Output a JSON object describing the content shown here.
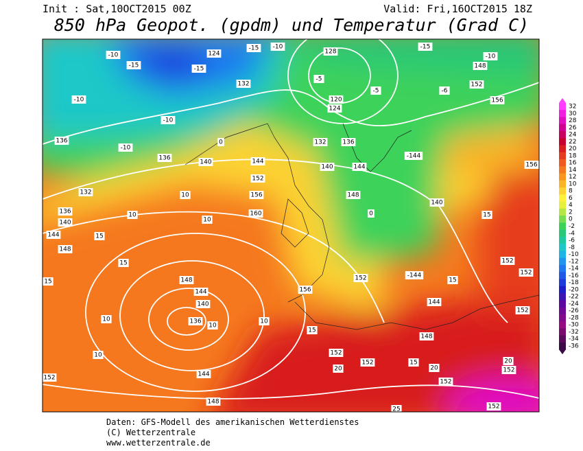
{
  "header": {
    "init": "Init : Sat,10OCT2015 00Z",
    "valid": "Valid: Fri,16OCT2015 18Z",
    "title": "850 hPa Geopot. (gpdm) und Temperatur (Grad C)"
  },
  "map": {
    "contour_labels": [
      "-10",
      "-15",
      "-15",
      "124",
      "-15",
      "-10",
      "128",
      "-15",
      "-10",
      "148",
      "-10",
      "-10",
      "132",
      "-5",
      "120",
      "124",
      "-5",
      "152",
      "156",
      "-6",
      "136",
      "-10",
      "136",
      "140",
      "0",
      "144",
      "152",
      "132",
      "136",
      "140",
      "144",
      "-144",
      "156",
      "132",
      "10",
      "156",
      "148",
      "140",
      "15",
      "136",
      "140",
      "10",
      "10",
      "160",
      "0",
      "144",
      "15",
      "148",
      "15",
      "15",
      "148",
      "140",
      "136",
      "10",
      "144",
      "10",
      "10",
      "156",
      "152",
      "-144",
      "15",
      "152",
      "144",
      "148",
      "15",
      "152",
      "152",
      "20",
      "15",
      "20",
      "152",
      "144",
      "148",
      "152",
      "10",
      "20",
      "152",
      "25",
      "152",
      "152",
      "152"
    ]
  },
  "colorbar": {
    "labels": [
      32,
      30,
      28,
      26,
      24,
      22,
      20,
      18,
      16,
      14,
      12,
      10,
      8,
      6,
      4,
      2,
      0,
      -2,
      -4,
      -6,
      -8,
      -10,
      -12,
      -14,
      -16,
      -18,
      -20,
      -22,
      -24,
      -26,
      -28,
      -30,
      -32,
      -34,
      -36
    ],
    "colors": [
      "#ff3cff",
      "#f020e0",
      "#e010c0",
      "#d00090",
      "#c80060",
      "#c80030",
      "#d81e1e",
      "#e63c1e",
      "#f05a1e",
      "#f5781e",
      "#f8961e",
      "#fab428",
      "#fcd232",
      "#fff03c",
      "#e6f03c",
      "#b4e646",
      "#78dc50",
      "#3cd25a",
      "#28c878",
      "#1ec8a0",
      "#1ec8c8",
      "#1eb4e6",
      "#1e96f0",
      "#1e78f0",
      "#1e5ae6",
      "#1e3cdc",
      "#1e1ec8",
      "#3c14b4",
      "#5a0aa0",
      "#6e0a96",
      "#820a8c",
      "#960a82",
      "#7a0a6e",
      "#5a0a5a",
      "#3c0a46"
    ]
  },
  "footer": {
    "line1": "Daten: GFS-Modell des amerikanischen Wetterdienstes",
    "line2": "(C) Wetterzentrale",
    "line3": "www.wetterzentrale.de"
  }
}
